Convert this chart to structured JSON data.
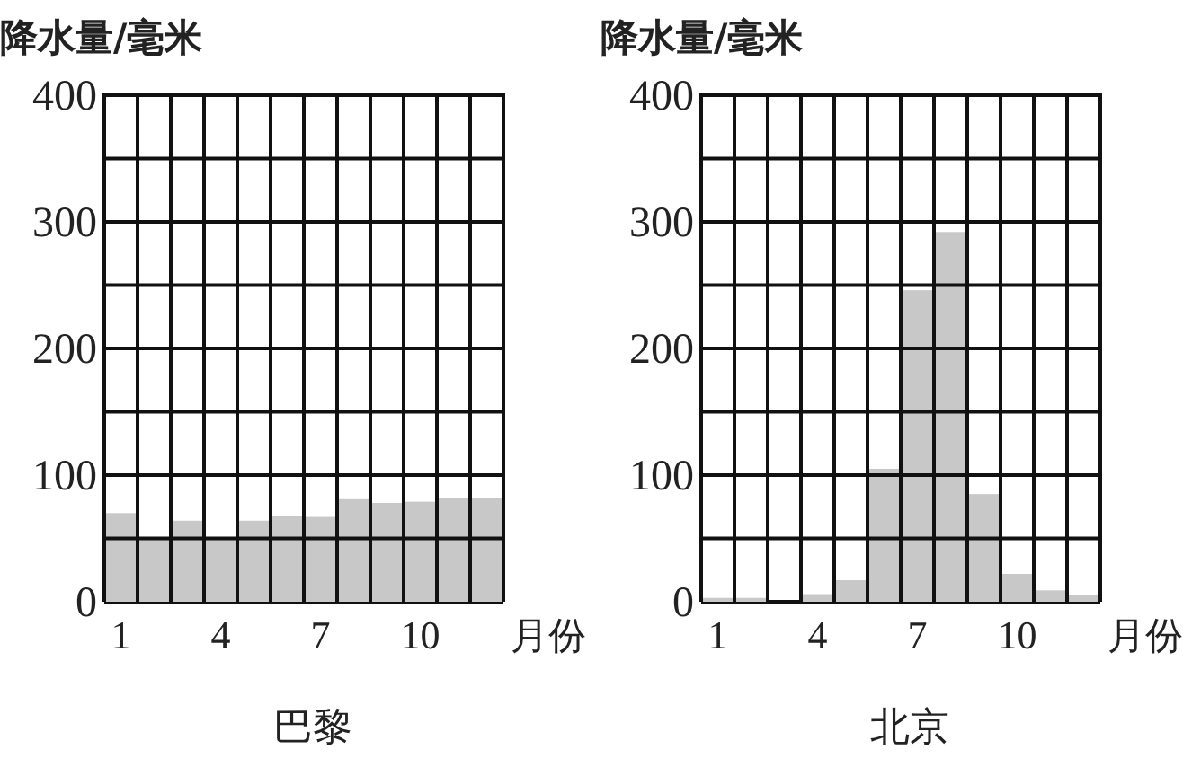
{
  "chart_data": [
    {
      "type": "bar",
      "title": "巴黎",
      "xlabel": "月份",
      "ylabel": "降水量/毫米",
      "categories": [
        "1",
        null,
        null,
        "4",
        null,
        null,
        "7",
        null,
        null,
        "10",
        null,
        null
      ],
      "values": [
        70,
        50,
        64,
        50,
        64,
        68,
        67,
        81,
        78,
        79,
        82,
        82
      ],
      "color": "#c8c8c8",
      "ylim": [
        0,
        400
      ],
      "yticks": [
        0,
        {
          "value": 50,
          "label": null
        },
        100,
        {
          "value": 150,
          "label": null
        },
        200,
        {
          "value": 250,
          "label": null
        },
        300,
        {
          "value": 350,
          "label": null
        },
        400
      ],
      "grid": true
    },
    {
      "type": "bar",
      "title": "北京",
      "xlabel": "月份",
      "ylabel": "降水量/毫米",
      "categories": [
        "1",
        null,
        null,
        "4",
        null,
        null,
        "7",
        null,
        null,
        "10",
        null,
        null
      ],
      "values": [
        3,
        3,
        null,
        6,
        17,
        105,
        246,
        292,
        85,
        22,
        9,
        5
      ],
      "color": "#c8c8c8",
      "ylim": [
        0,
        400
      ],
      "yticks": [
        0,
        {
          "value": 50,
          "label": null
        },
        100,
        {
          "value": 150,
          "label": null
        },
        200,
        {
          "value": 250,
          "label": null
        },
        300,
        {
          "value": 350,
          "label": null
        },
        400
      ],
      "grid": true
    }
  ]
}
